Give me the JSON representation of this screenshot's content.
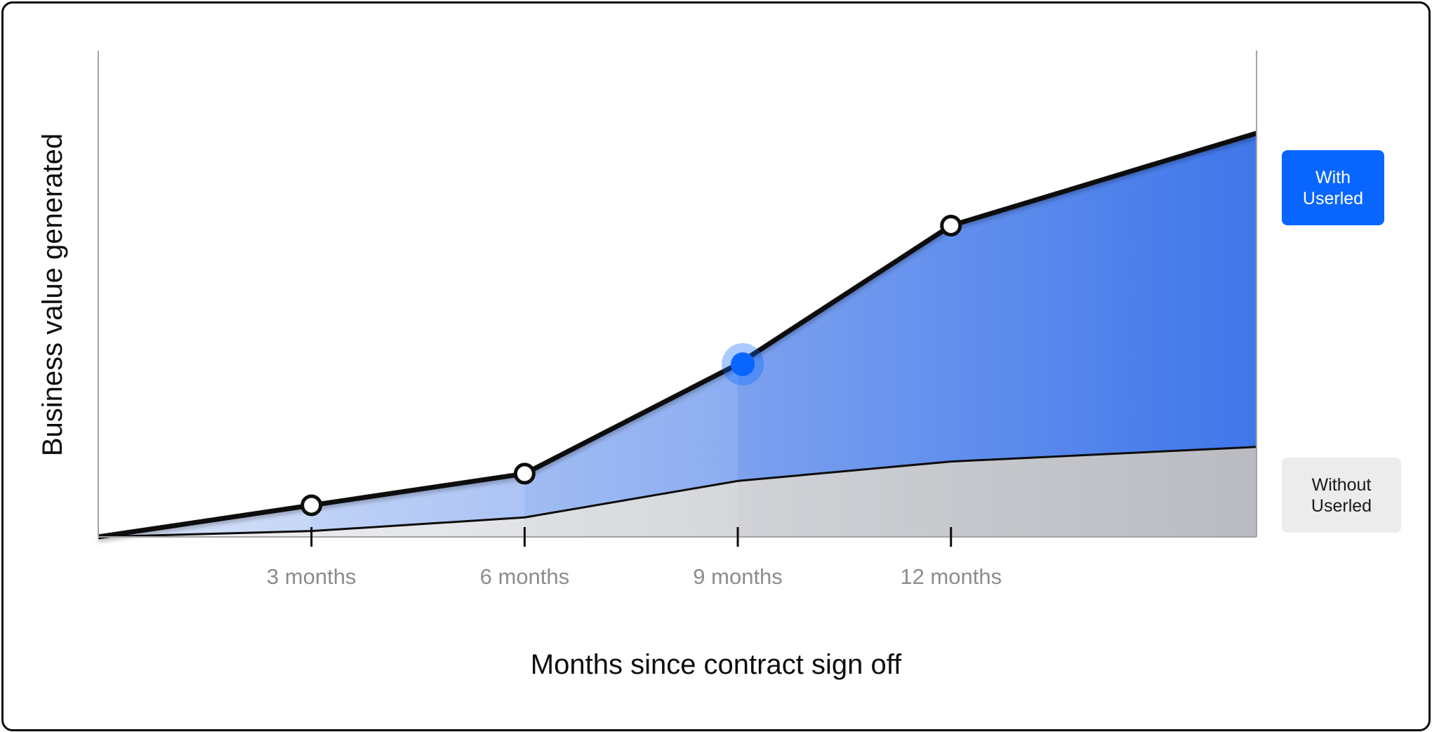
{
  "chart_data": {
    "type": "area",
    "x_categories": [
      "3 months",
      "6 months",
      "9 months",
      "12 months"
    ],
    "xlabel": "Months since contract sign off",
    "ylabel": "Business value generated",
    "x_range_months": [
      0,
      16.3
    ],
    "y_range": [
      0,
      100
    ],
    "y_ticks_shown": false,
    "grid": false,
    "legend_position": "right",
    "series": [
      {
        "name": "With Userled",
        "x": [
          0,
          3,
          6,
          9,
          12,
          16.3
        ],
        "y": [
          0,
          6.5,
          13,
          35.5,
          64,
          83
        ],
        "markers": [
          {
            "x": 3,
            "style": "hollow"
          },
          {
            "x": 6,
            "style": "hollow"
          },
          {
            "x": 9,
            "style": "highlight"
          },
          {
            "x": 12,
            "style": "hollow"
          }
        ],
        "color": "#0866ff"
      },
      {
        "name": "Without Userled",
        "x": [
          0,
          3,
          6,
          9,
          12,
          16.3
        ],
        "y": [
          0,
          1.2,
          4,
          11.5,
          15.5,
          18.5
        ],
        "color": "#bfc1c6"
      }
    ]
  },
  "legend": {
    "with_label": "With Userled",
    "without_label": "Without Userled"
  },
  "colors": {
    "accent": "#0866ff",
    "line": "#0d0d0d",
    "axis": "#a3a3a3",
    "without_fill": "#c3c5ca"
  }
}
